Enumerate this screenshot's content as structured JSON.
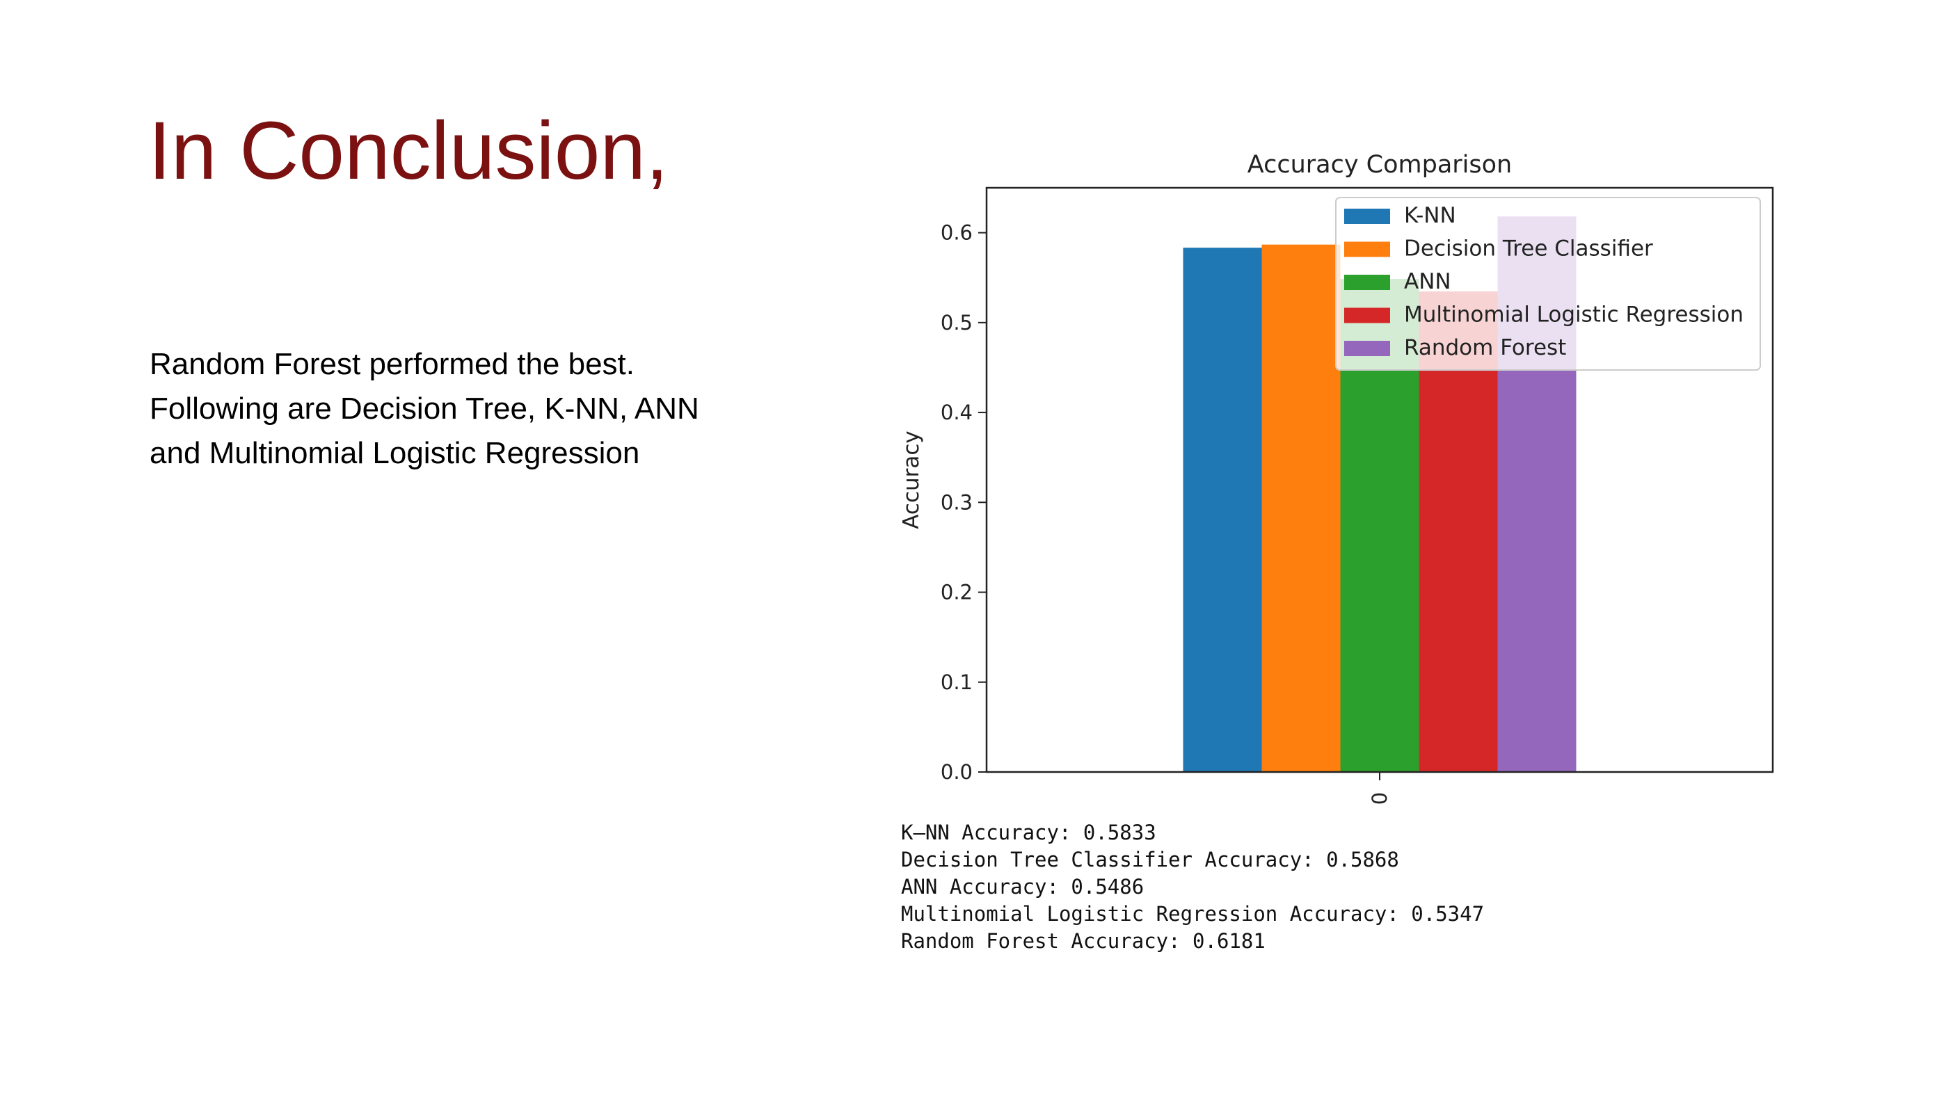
{
  "slide": {
    "title": "In Conclusion,",
    "body_lines": [
      "Random Forest performed the best.",
      "Following are Decision Tree, K-NN, ANN",
      "and Multinomial Logistic Regression"
    ]
  },
  "chart_data": {
    "type": "bar",
    "title": "Accuracy Comparison",
    "xlabel": "",
    "ylabel": "Accuracy",
    "categories": [
      "0"
    ],
    "ylim": [
      0,
      0.65
    ],
    "yticks": [
      "0.0",
      "0.1",
      "0.2",
      "0.3",
      "0.4",
      "0.5",
      "0.6"
    ],
    "grid": false,
    "legend_position": "top-right",
    "series": [
      {
        "name": "K-NN",
        "values": [
          0.5833
        ],
        "color": "#1f77b4"
      },
      {
        "name": "Decision Tree Classifier",
        "values": [
          0.5868
        ],
        "color": "#ff7f0e"
      },
      {
        "name": "ANN",
        "values": [
          0.5486
        ],
        "color": "#2ca02c"
      },
      {
        "name": "Multinomial Logistic Regression",
        "values": [
          0.5347
        ],
        "color": "#d62728"
      },
      {
        "name": "Random Forest",
        "values": [
          0.6181
        ],
        "color": "#9467bd"
      }
    ]
  },
  "console_output": [
    "K—NN Accuracy: 0.5833",
    "Decision Tree Classifier Accuracy: 0.5868",
    "ANN Accuracy: 0.5486",
    "Multinomial Logistic Regression Accuracy: 0.5347",
    "Random Forest Accuracy: 0.6181"
  ],
  "colors": {
    "title": "#7b1111"
  }
}
